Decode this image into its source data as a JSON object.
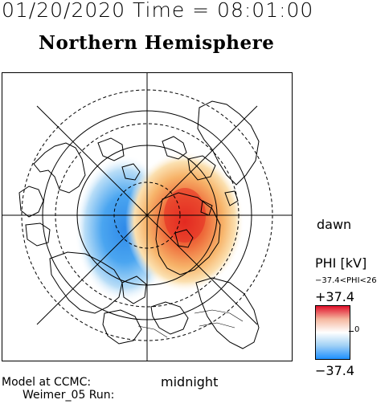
{
  "header": {
    "datetime": "01/20/2020 Time = 08:01:00",
    "title": "Northern Hemisphere"
  },
  "map": {
    "label_dawn": "dawn",
    "label_midnight": "midnight",
    "potential_min": -37.4,
    "potential_max": 37.4,
    "negative_cell_color": "#3a8ee8",
    "positive_cell_color": "#e03a2a"
  },
  "colorbar": {
    "title": "PHI [kV]",
    "range_text": "−37.4<PHI<26",
    "max_label": "+37.4",
    "zero_label": "0",
    "min_label": "−37.4",
    "colors": [
      "#e0102a",
      "#f5b8a0",
      "#ffffff",
      "#9fd0f5",
      "#1e90ff"
    ]
  },
  "footer": {
    "model_line1": "Model at CCMC:",
    "model_line2": "Weimer_05 Run:"
  }
}
